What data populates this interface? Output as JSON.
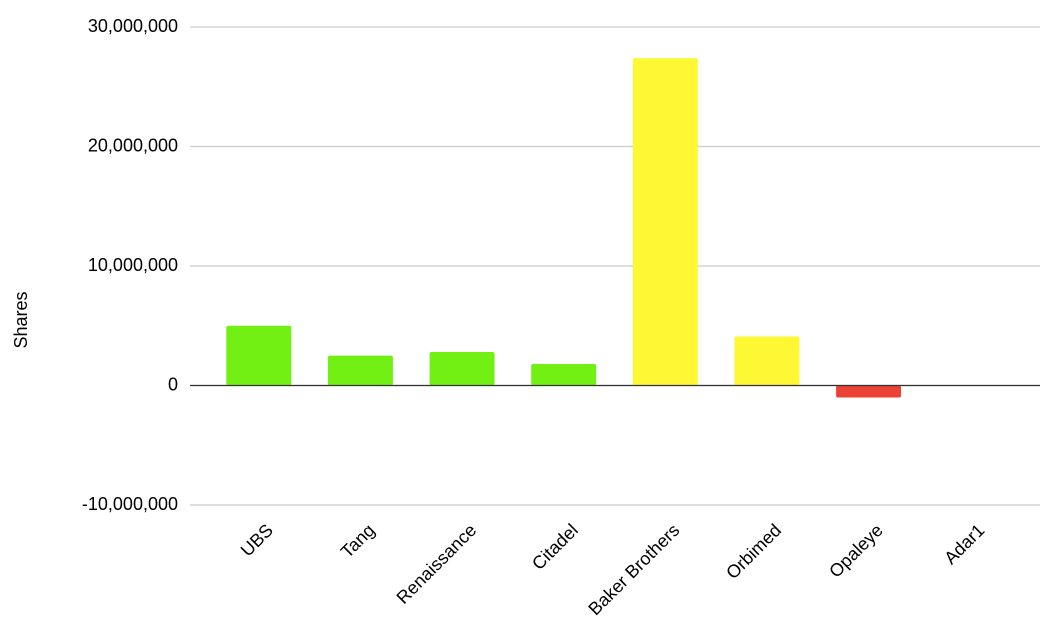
{
  "chart_data": {
    "type": "bar",
    "y_axis_label": "Shares",
    "categories": [
      "UBS",
      "Tang",
      "Renaissance",
      "Citadel",
      "Baker Brothers",
      "Orbimed",
      "Opaleye",
      "Adar1"
    ],
    "values": [
      5000000,
      2500000,
      2800000,
      1800000,
      27400000,
      4100000,
      -1000000,
      0
    ],
    "colors": [
      "#72f014",
      "#72f014",
      "#72f014",
      "#72f014",
      "#fdf734",
      "#fdf734",
      "#ea4335",
      "#fdf734"
    ],
    "ylim": [
      -10000000,
      30000000
    ],
    "yticks": [
      {
        "value": -10000000,
        "label": "-10,000,000"
      },
      0,
      {
        "value": 10000000,
        "label": "10,000,000"
      },
      {
        "value": 20000000,
        "label": "20,000,000"
      },
      {
        "value": 30000000,
        "label": "30,000,000"
      }
    ],
    "grid": true
  }
}
